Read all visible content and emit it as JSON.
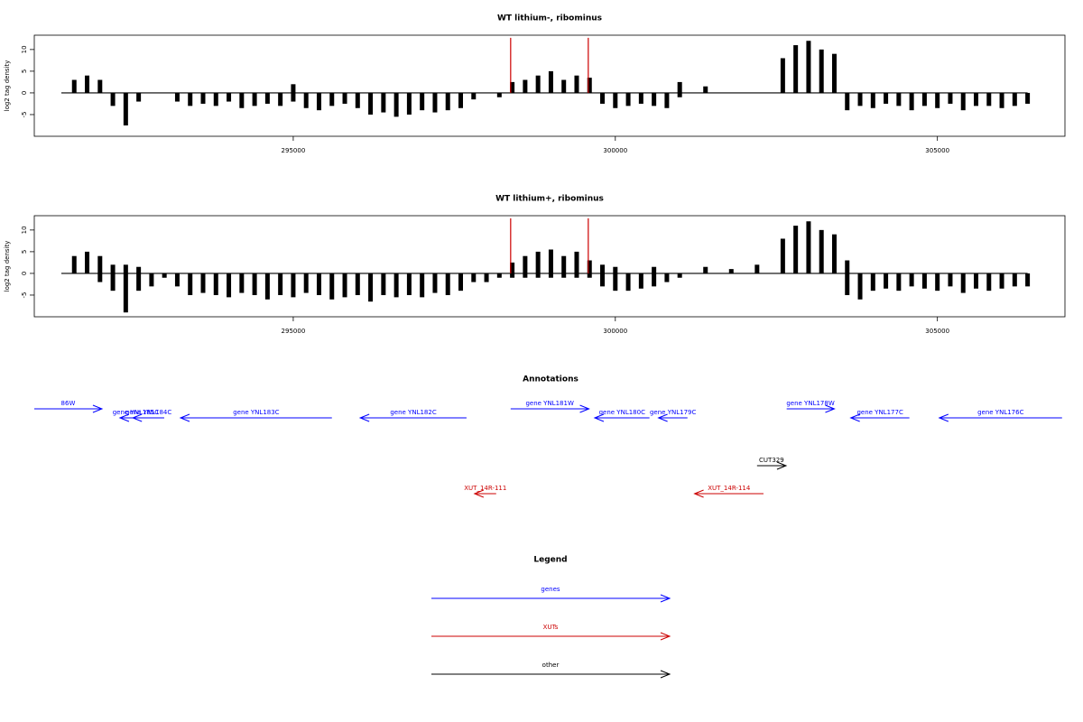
{
  "chart_data": [
    {
      "type": "bar",
      "title": "WT lithium-, ribominus",
      "ylabel": "log2 tag density",
      "xlim": [
        290980,
        306980
      ],
      "xticks": [
        295000,
        300000,
        305000
      ],
      "ylim": [
        -10,
        13.3
      ],
      "yticks": [
        -5,
        0,
        5,
        10
      ],
      "x": [
        291400,
        291600,
        291800,
        292000,
        292200,
        292400,
        292600,
        292800,
        293000,
        293200,
        293400,
        293600,
        293800,
        294000,
        294200,
        294400,
        294600,
        294800,
        295000,
        295200,
        295400,
        295600,
        295800,
        296000,
        296200,
        296400,
        296600,
        296800,
        297000,
        297200,
        297400,
        297600,
        297800,
        298000,
        298200,
        298400,
        298600,
        298800,
        299000,
        299200,
        299400,
        299600,
        299800,
        300000,
        300200,
        300400,
        300600,
        300800,
        301000,
        301200,
        301400,
        301600,
        301800,
        302000,
        302200,
        302400,
        302600,
        302800,
        303000,
        303200,
        303400,
        303600,
        303800,
        304000,
        304200,
        304400,
        304600,
        304800,
        305000,
        305200,
        305400,
        305600,
        305800,
        306000,
        306200,
        306400
      ],
      "series": [
        {
          "color": "#000000",
          "values": [
            0,
            3,
            4,
            3,
            0,
            0,
            0,
            0,
            0,
            0,
            0,
            0,
            0,
            0,
            0,
            0,
            0,
            0,
            2,
            0,
            0,
            0,
            0,
            0,
            0,
            0,
            0,
            0,
            0,
            0,
            0,
            0,
            0,
            0,
            0,
            2.5,
            3,
            4,
            5,
            3,
            4,
            3.5,
            0,
            0,
            0,
            0,
            0,
            0,
            2.5,
            0,
            1.5,
            0,
            0,
            0,
            0,
            0,
            8,
            11,
            12,
            10,
            9,
            0,
            0,
            0,
            0,
            0,
            0,
            0,
            0,
            0,
            0,
            0,
            0,
            0,
            0,
            0
          ]
        },
        {
          "color": "#000000",
          "values": [
            0,
            0,
            0,
            0,
            -3,
            -7.5,
            -2,
            0,
            0,
            -2,
            -3,
            -2.5,
            -3,
            -2,
            -3.5,
            -3,
            -2.5,
            -3,
            -2,
            -3.5,
            -4,
            -3,
            -2.5,
            -3.5,
            -5,
            -4.5,
            -5.5,
            -5,
            -4,
            -4.5,
            -4,
            -3.5,
            -1.5,
            0,
            -1,
            0,
            0,
            0,
            0,
            0,
            0,
            0,
            -2.5,
            -3.5,
            -3,
            -2.5,
            -3,
            -3.5,
            -1,
            0,
            0,
            0,
            0,
            0,
            0,
            0,
            0,
            0,
            0,
            0,
            0,
            -4,
            -3,
            -3.5,
            -2.5,
            -3,
            -4,
            -3,
            -3.5,
            -2.5,
            -4,
            -3,
            -3,
            -3.5,
            -3,
            -2.5
          ]
        },
        {
          "color": "#cc0000",
          "x": [
            298375,
            299580
          ],
          "values": [
            12.7,
            12.7
          ]
        }
      ]
    },
    {
      "type": "bar",
      "title": "WT lithium+, ribominus",
      "ylabel": "log2 tag density",
      "xlim": [
        290980,
        306980
      ],
      "xticks": [
        295000,
        300000,
        305000
      ],
      "ylim": [
        -10,
        13.3
      ],
      "yticks": [
        -5,
        0,
        5,
        10
      ],
      "x": [
        291400,
        291600,
        291800,
        292000,
        292200,
        292400,
        292600,
        292800,
        293000,
        293200,
        293400,
        293600,
        293800,
        294000,
        294200,
        294400,
        294600,
        294800,
        295000,
        295200,
        295400,
        295600,
        295800,
        296000,
        296200,
        296400,
        296600,
        296800,
        297000,
        297200,
        297400,
        297600,
        297800,
        298000,
        298200,
        298400,
        298600,
        298800,
        299000,
        299200,
        299400,
        299600,
        299800,
        300000,
        300200,
        300400,
        300600,
        300800,
        301000,
        301200,
        301400,
        301600,
        301800,
        302000,
        302200,
        302400,
        302600,
        302800,
        303000,
        303200,
        303400,
        303600,
        303800,
        304000,
        304200,
        304400,
        304600,
        304800,
        305000,
        305200,
        305400,
        305600,
        305800,
        306000,
        306200,
        306400
      ],
      "series": [
        {
          "color": "#000000",
          "values": [
            0,
            4,
            5,
            4,
            2,
            2,
            1.5,
            0,
            0,
            0,
            0,
            0,
            0,
            0,
            0,
            0,
            0,
            0,
            0,
            0,
            0,
            0,
            0,
            0,
            0,
            0,
            0,
            0,
            0,
            0,
            0,
            0,
            0,
            0,
            0,
            2.5,
            4,
            5,
            5.5,
            4,
            5,
            3,
            2,
            1.5,
            0,
            0,
            1.5,
            0,
            0,
            0,
            1.5,
            0,
            1,
            0,
            2,
            0,
            8,
            11,
            12,
            10,
            9,
            3,
            0,
            0,
            0,
            0,
            0,
            0,
            0,
            0,
            0,
            0,
            0,
            0,
            0,
            0
          ]
        },
        {
          "color": "#000000",
          "values": [
            0,
            0,
            0,
            -2,
            -4,
            -9,
            -4,
            -3,
            -1,
            -3,
            -5,
            -4.5,
            -5,
            -5.5,
            -4.5,
            -5,
            -6,
            -5,
            -5.5,
            -4.5,
            -5,
            -6,
            -5.5,
            -5,
            -6.5,
            -5,
            -5.5,
            -5,
            -5.5,
            -4.5,
            -5,
            -4,
            -2,
            -2,
            -1,
            -1,
            -1,
            -1,
            -1,
            -1,
            -1,
            -1,
            -3,
            -4,
            -4,
            -3.5,
            -3,
            -2,
            -1,
            0,
            0,
            0,
            0,
            0,
            0,
            0,
            0,
            0,
            0,
            0,
            0,
            -5,
            -6,
            -4,
            -3.5,
            -4,
            -3,
            -3.5,
            -4,
            -3,
            -4.5,
            -3.5,
            -4,
            -3.5,
            -3,
            -3
          ]
        },
        {
          "color": "#cc0000",
          "x": [
            298375,
            299580
          ],
          "values": [
            12.7,
            12.7
          ]
        }
      ]
    }
  ],
  "annotations": {
    "title": "Annotations",
    "xlim": [
      290980,
      306980
    ],
    "features": [
      {
        "label": "86W",
        "kind": "genes",
        "start": 290980,
        "end": 292030
      },
      {
        "label": "gene YNL185C",
        "kind": "genes",
        "start": 292800,
        "end": 292310
      },
      {
        "label": "gene YNL184C",
        "kind": "genes",
        "start": 292997,
        "end": 292510
      },
      {
        "label": "gene YNL183C",
        "kind": "genes",
        "start": 295600,
        "end": 293250
      },
      {
        "label": "gene YNL182C",
        "kind": "genes",
        "start": 297690,
        "end": 296040
      },
      {
        "label": "gene YNL181W",
        "kind": "genes",
        "start": 298375,
        "end": 299590
      },
      {
        "label": "gene YNL180C",
        "kind": "genes",
        "start": 300530,
        "end": 299680
      },
      {
        "label": "gene YNL179C",
        "kind": "genes",
        "start": 301120,
        "end": 300670
      },
      {
        "label": "gene YNL178W",
        "kind": "genes",
        "start": 302660,
        "end": 303400
      },
      {
        "label": "gene YNL177C",
        "kind": "genes",
        "start": 304565,
        "end": 303655
      },
      {
        "label": "gene YNL176C",
        "kind": "genes",
        "start": 306935,
        "end": 305030
      },
      {
        "label": "CUT329",
        "kind": "other",
        "start": 302200,
        "end": 302650
      },
      {
        "label": "XUT_14R-111",
        "kind": "XUTs",
        "start": 298150,
        "end": 297815
      },
      {
        "label": "XUT_14R-114",
        "kind": "XUTs",
        "start": 302300,
        "end": 301230
      }
    ]
  },
  "legend": {
    "title": "Legend",
    "items": [
      {
        "label": "genes",
        "color": "#0000ff"
      },
      {
        "label": "XUTs",
        "color": "#cc0000"
      },
      {
        "label": "other",
        "color": "#000000"
      }
    ]
  }
}
